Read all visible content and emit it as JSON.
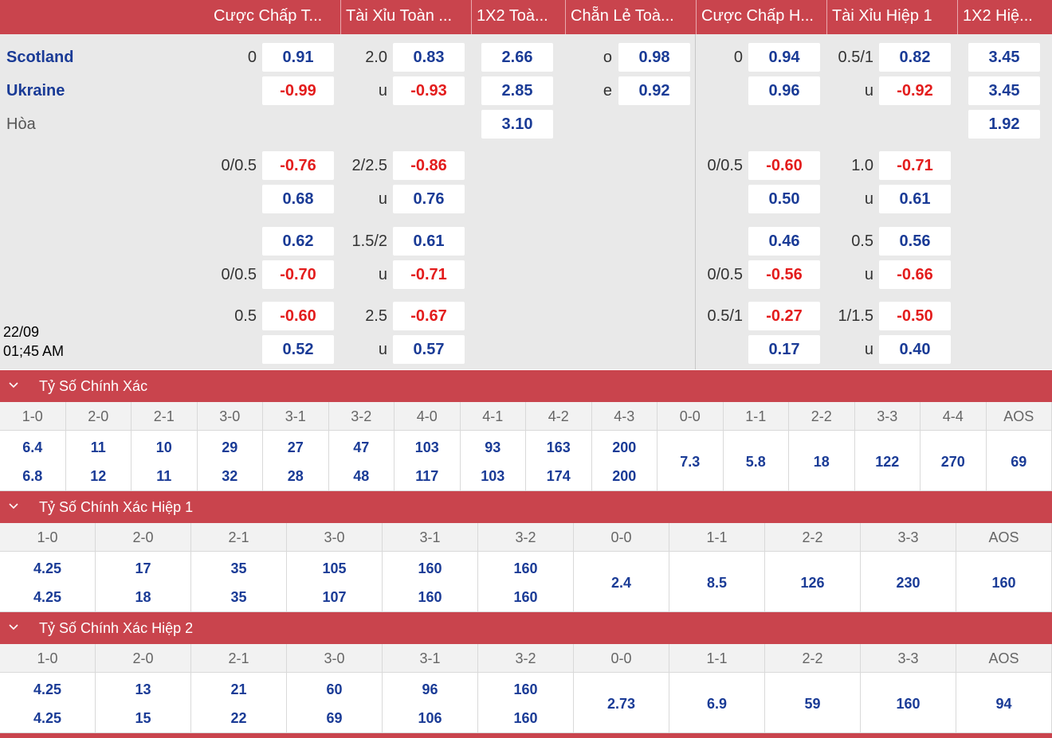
{
  "header": {
    "columns": [
      "Cược Chấp T...",
      "Tài Xỉu Toàn ...",
      "1X2 Toà...",
      "Chẵn Lẻ Toà...",
      "Cược Chấp H...",
      "Tài Xỉu Hiệp 1",
      "1X2 Hiệ..."
    ]
  },
  "match": {
    "home": "Scotland",
    "away": "Ukraine",
    "draw": "Hòa",
    "date": "22/09",
    "time": "01;45 AM"
  },
  "main_line": {
    "hdp_full": {
      "line": "0",
      "home": "0.91",
      "away": "-0.99"
    },
    "ou_full": {
      "line": "2.0",
      "under_label": "u",
      "over": "0.83",
      "under": "-0.93"
    },
    "x12_full": {
      "home": "2.66",
      "away": "2.85",
      "draw": "3.10"
    },
    "oe_full": {
      "odd_label": "o",
      "even_label": "e",
      "odd": "0.98",
      "even": "0.92"
    },
    "hdp_h1": {
      "line": "0",
      "home": "0.94",
      "away": "0.96"
    },
    "ou_h1": {
      "line": "0.5/1",
      "under_label": "u",
      "over": "0.82",
      "under": "-0.92"
    },
    "x12_h1": {
      "home": "3.45",
      "away": "3.45",
      "draw": "1.92"
    }
  },
  "alt_lines": [
    {
      "hdp_full": {
        "line_top": "0/0.5",
        "line_bottom": "",
        "top": "-0.76",
        "bottom": "0.68"
      },
      "ou_full": {
        "line": "2/2.5",
        "u": "u",
        "top": "-0.86",
        "bottom": "0.76"
      },
      "hdp_h1": {
        "line_top": "0/0.5",
        "line_bottom": "",
        "top": "-0.60",
        "bottom": "0.50"
      },
      "ou_h1": {
        "line": "1.0",
        "u": "u",
        "top": "-0.71",
        "bottom": "0.61"
      }
    },
    {
      "hdp_full": {
        "line_top": "",
        "line_bottom": "0/0.5",
        "top": "0.62",
        "bottom": "-0.70"
      },
      "ou_full": {
        "line": "1.5/2",
        "u": "u",
        "top": "0.61",
        "bottom": "-0.71"
      },
      "hdp_h1": {
        "line_top": "",
        "line_bottom": "0/0.5",
        "top": "0.46",
        "bottom": "-0.56"
      },
      "ou_h1": {
        "line": "0.5",
        "u": "u",
        "top": "0.56",
        "bottom": "-0.66"
      }
    },
    {
      "hdp_full": {
        "line_top": "0.5",
        "line_bottom": "",
        "top": "-0.60",
        "bottom": "0.52"
      },
      "ou_full": {
        "line": "2.5",
        "u": "u",
        "top": "-0.67",
        "bottom": "0.57"
      },
      "hdp_h1": {
        "line_top": "0.5/1",
        "line_bottom": "",
        "top": "-0.27",
        "bottom": "0.17"
      },
      "ou_h1": {
        "line": "1/1.5",
        "u": "u",
        "top": "-0.50",
        "bottom": "0.40"
      }
    }
  ],
  "sections": [
    {
      "title": "Tỷ Số Chính Xác",
      "scores": [
        "1-0",
        "2-0",
        "2-1",
        "3-0",
        "3-1",
        "3-2",
        "4-0",
        "4-1",
        "4-2",
        "4-3",
        "0-0",
        "1-1",
        "2-2",
        "3-3",
        "4-4",
        "AOS"
      ],
      "odds": [
        [
          "6.4",
          "6.8"
        ],
        [
          "11",
          "12"
        ],
        [
          "10",
          "11"
        ],
        [
          "29",
          "32"
        ],
        [
          "27",
          "28"
        ],
        [
          "47",
          "48"
        ],
        [
          "103",
          "117"
        ],
        [
          "93",
          "103"
        ],
        [
          "163",
          "174"
        ],
        [
          "200",
          "200"
        ],
        [
          "7.3"
        ],
        [
          "5.8"
        ],
        [
          "18"
        ],
        [
          "122"
        ],
        [
          "270"
        ],
        [
          "69"
        ]
      ]
    },
    {
      "title": "Tỷ Số Chính Xác Hiệp 1",
      "scores": [
        "1-0",
        "2-0",
        "2-1",
        "3-0",
        "3-1",
        "3-2",
        "0-0",
        "1-1",
        "2-2",
        "3-3",
        "AOS"
      ],
      "odds": [
        [
          "4.25",
          "4.25"
        ],
        [
          "17",
          "18"
        ],
        [
          "35",
          "35"
        ],
        [
          "105",
          "107"
        ],
        [
          "160",
          "160"
        ],
        [
          "160",
          "160"
        ],
        [
          "2.4"
        ],
        [
          "8.5"
        ],
        [
          "126"
        ],
        [
          "230"
        ],
        [
          "160"
        ]
      ]
    },
    {
      "title": "Tỷ Số Chính Xác Hiệp 2",
      "scores": [
        "1-0",
        "2-0",
        "2-1",
        "3-0",
        "3-1",
        "3-2",
        "0-0",
        "1-1",
        "2-2",
        "3-3",
        "AOS"
      ],
      "odds": [
        [
          "4.25",
          "4.25"
        ],
        [
          "13",
          "15"
        ],
        [
          "21",
          "22"
        ],
        [
          "60",
          "69"
        ],
        [
          "96",
          "106"
        ],
        [
          "160",
          "160"
        ],
        [
          "2.73"
        ],
        [
          "6.9"
        ],
        [
          "59"
        ],
        [
          "160"
        ],
        [
          "94"
        ]
      ]
    }
  ],
  "colors": {
    "header_red": "#c9444d",
    "odds_blue": "#1a3b96",
    "odds_negative": "#e31c1c"
  },
  "icons": {
    "section_toggle": "chevron-down-icon"
  }
}
